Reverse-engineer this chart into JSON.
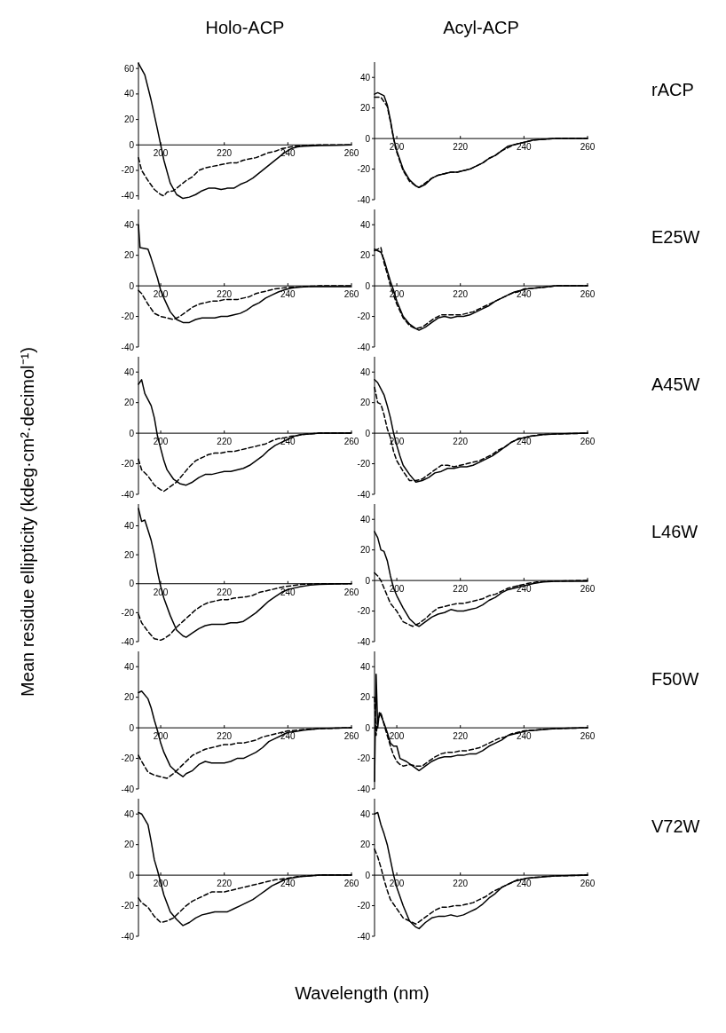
{
  "chart_data": [
    {
      "type": "line",
      "title": "Holo-ACP",
      "xlim": [
        193,
        260
      ],
      "xticks": [
        200,
        220,
        240,
        260
      ],
      "ylim": [
        -43,
        65
      ],
      "yticks": [
        -40,
        -20,
        0,
        20,
        40,
        60
      ],
      "series": [
        {
          "color": "#000000",
          "line_style": "solid",
          "x": [
            193,
            195,
            197,
            199,
            200,
            201,
            203,
            205,
            207,
            209,
            211,
            213,
            215,
            217,
            219,
            221,
            223,
            225,
            227,
            229,
            231,
            233,
            235,
            237,
            239,
            241,
            243,
            245,
            250,
            255,
            260
          ],
          "values": [
            64,
            55,
            35,
            12,
            0,
            -12,
            -30,
            -39,
            -42,
            -41,
            -39,
            -36,
            -34,
            -34,
            -35,
            -34,
            -34,
            -31,
            -29,
            -26,
            -22,
            -18,
            -14,
            -10,
            -6,
            -3,
            -1.5,
            -1,
            -0.5,
            -0.3,
            0
          ]
        },
        {
          "color": "#000000",
          "line_style": "dashed",
          "x": [
            193,
            194,
            196,
            198,
            200,
            201,
            202,
            204,
            206,
            208,
            210,
            212,
            214,
            216,
            218,
            220,
            222,
            224,
            226,
            228,
            230,
            232,
            234,
            236,
            238,
            240,
            242,
            245,
            250,
            260
          ],
          "values": [
            -10,
            -20,
            -28,
            -35,
            -39,
            -40,
            -37,
            -36,
            -32,
            -28,
            -25,
            -20,
            -18,
            -17,
            -16,
            -15,
            -14,
            -14,
            -12,
            -11,
            -10,
            -8,
            -6,
            -5,
            -3,
            -2,
            -1,
            -0.5,
            0,
            0
          ]
        }
      ]
    },
    {
      "type": "line",
      "title": "Acyl-ACP",
      "annotations": [
        "rACP"
      ],
      "xlim": [
        193,
        260
      ],
      "xticks": [
        200,
        220,
        240,
        260
      ],
      "ylim": [
        -40,
        50
      ],
      "yticks": [
        -40,
        -20,
        0,
        20,
        40
      ],
      "series": [
        {
          "color": "#000000",
          "line_style": "solid",
          "x": [
            193,
            194,
            196,
            197,
            198,
            199,
            200,
            202,
            204,
            206,
            207,
            209,
            211,
            213,
            215,
            217,
            219,
            221,
            223,
            225,
            227,
            229,
            231,
            233,
            235,
            237,
            239,
            241,
            243,
            246,
            250,
            260
          ],
          "values": [
            29,
            30,
            28,
            22,
            12,
            0,
            -8,
            -20,
            -27,
            -31,
            -32,
            -30,
            -26,
            -24,
            -23,
            -22,
            -22,
            -21,
            -20,
            -18,
            -16,
            -13,
            -11,
            -8,
            -5,
            -4,
            -3,
            -2,
            -1,
            -0.5,
            0,
            0
          ]
        },
        {
          "color": "#000000",
          "line_style": "dashed",
          "x": [
            193,
            195,
            197,
            198,
            199,
            200,
            202,
            204,
            206,
            207,
            209,
            211,
            213,
            215,
            217,
            219,
            221,
            223,
            225,
            227,
            229,
            231,
            233,
            235,
            237,
            239,
            241,
            243,
            246,
            250,
            260
          ],
          "values": [
            27,
            27,
            21,
            11,
            0,
            -9,
            -21,
            -28,
            -31,
            -32,
            -29,
            -26,
            -24,
            -23,
            -22,
            -22,
            -21,
            -20,
            -18,
            -16,
            -13,
            -11,
            -8,
            -6,
            -4,
            -3,
            -2,
            -1,
            -0.5,
            0,
            0
          ]
        }
      ]
    },
    {
      "type": "line",
      "xlim": [
        193,
        260
      ],
      "xticks": [
        200,
        220,
        240,
        260
      ],
      "ylim": [
        -40,
        50
      ],
      "yticks": [
        -40,
        -20,
        0,
        20,
        40
      ],
      "series": [
        {
          "color": "#000000",
          "line_style": "solid",
          "x": [
            193,
            193.5,
            196,
            197,
            199,
            200,
            201,
            203,
            205,
            207,
            209,
            211,
            213,
            215,
            217,
            219,
            221,
            223,
            225,
            227,
            229,
            231,
            233,
            235,
            237,
            239,
            241,
            243,
            246,
            250,
            260
          ],
          "values": [
            40,
            25,
            24,
            18,
            5,
            -3,
            -8,
            -17,
            -22,
            -24,
            -24,
            -22,
            -21,
            -21,
            -21,
            -20,
            -20,
            -19,
            -18,
            -16,
            -13,
            -11,
            -8,
            -6,
            -4,
            -2.5,
            -1.5,
            -1,
            -0.5,
            -0.3,
            -0.5
          ]
        },
        {
          "color": "#000000",
          "line_style": "dashed",
          "x": [
            193,
            194,
            196,
            198,
            200,
            202,
            204,
            206,
            208,
            210,
            212,
            214,
            216,
            218,
            220,
            222,
            224,
            226,
            228,
            230,
            232,
            234,
            236,
            238,
            240,
            245,
            250,
            260
          ],
          "values": [
            -3,
            -5,
            -12,
            -18,
            -20,
            -21,
            -22,
            -20,
            -17,
            -14,
            -12,
            -11,
            -10,
            -10,
            -9,
            -9,
            -9,
            -8,
            -7,
            -5,
            -4,
            -3,
            -2,
            -1.5,
            -1,
            -0.5,
            0,
            0
          ]
        }
      ]
    },
    {
      "type": "line",
      "annotations": [
        "E25W"
      ],
      "xlim": [
        193,
        260
      ],
      "xticks": [
        200,
        220,
        240,
        260
      ],
      "ylim": [
        -40,
        50
      ],
      "yticks": [
        -40,
        -20,
        0,
        20,
        40
      ],
      "series": [
        {
          "color": "#000000",
          "line_style": "solid",
          "x": [
            193,
            195,
            196,
            197,
            198,
            199,
            200,
            202,
            204,
            206,
            207,
            209,
            211,
            213,
            215,
            217,
            219,
            221,
            223,
            225,
            227,
            229,
            231,
            233,
            235,
            237,
            239,
            241,
            243,
            246,
            250,
            255,
            260
          ],
          "values": [
            24,
            22,
            17,
            10,
            3,
            -3,
            -10,
            -20,
            -25,
            -28,
            -29,
            -27,
            -24,
            -21,
            -20,
            -21,
            -20,
            -20,
            -19,
            -17,
            -15,
            -13,
            -10,
            -8,
            -6,
            -4,
            -3,
            -2,
            -1.5,
            -1,
            0,
            0,
            0
          ]
        },
        {
          "color": "#000000",
          "line_style": "dashed",
          "x": [
            193,
            195,
            196,
            197,
            198,
            199,
            200,
            202,
            204,
            206,
            208,
            210,
            212,
            214,
            216,
            218,
            220,
            222,
            224,
            226,
            228,
            230,
            232,
            234,
            236,
            238,
            240,
            243,
            246,
            250,
            260
          ],
          "values": [
            23,
            25,
            15,
            8,
            0,
            -6,
            -12,
            -21,
            -26,
            -28,
            -27,
            -24,
            -21,
            -19,
            -19,
            -19,
            -19,
            -18,
            -17,
            -15,
            -13,
            -11,
            -9,
            -7,
            -5,
            -4,
            -2,
            -1.5,
            -1,
            0,
            0
          ]
        }
      ]
    },
    {
      "type": "line",
      "xlim": [
        193,
        260
      ],
      "xticks": [
        200,
        220,
        240,
        260
      ],
      "ylim": [
        -40,
        50
      ],
      "yticks": [
        -40,
        -20,
        0,
        20,
        40
      ],
      "series": [
        {
          "color": "#000000",
          "line_style": "solid",
          "x": [
            193,
            194,
            195,
            197,
            198,
            199,
            200,
            201,
            202,
            204,
            206,
            208,
            210,
            212,
            214,
            216,
            218,
            220,
            222,
            224,
            226,
            228,
            230,
            232,
            234,
            236,
            238,
            240,
            242,
            244,
            247,
            250,
            260
          ],
          "values": [
            32,
            35,
            26,
            18,
            10,
            -2,
            -10,
            -18,
            -24,
            -30,
            -33,
            -34,
            -32,
            -29,
            -27,
            -27,
            -26,
            -25,
            -25,
            -24,
            -23,
            -21,
            -18,
            -15,
            -11,
            -8,
            -6,
            -4,
            -2,
            -1,
            -0.5,
            0,
            0
          ]
        },
        {
          "color": "#000000",
          "line_style": "dashed",
          "x": [
            193,
            194,
            196,
            198,
            200,
            201,
            203,
            205,
            207,
            209,
            211,
            213,
            215,
            217,
            219,
            221,
            223,
            225,
            227,
            229,
            231,
            233,
            235,
            237,
            239,
            241,
            243,
            246,
            250,
            260
          ],
          "values": [
            -17,
            -24,
            -28,
            -34,
            -37,
            -38,
            -35,
            -32,
            -27,
            -22,
            -18,
            -16,
            -14,
            -13,
            -13,
            -12,
            -12,
            -11,
            -10,
            -9,
            -8,
            -7,
            -5,
            -3.5,
            -3,
            -2,
            -1.5,
            -0.5,
            0,
            0
          ]
        }
      ]
    },
    {
      "type": "line",
      "annotations": [
        "A45W"
      ],
      "xlim": [
        193,
        260
      ],
      "xticks": [
        200,
        220,
        240,
        260
      ],
      "ylim": [
        -40,
        50
      ],
      "yticks": [
        -40,
        -20,
        0,
        20,
        40
      ],
      "series": [
        {
          "color": "#000000",
          "line_style": "solid",
          "x": [
            193,
            194,
            195,
            196,
            197,
            198,
            199,
            200,
            201,
            202,
            204,
            206,
            208,
            210,
            212,
            214,
            216,
            218,
            220,
            222,
            224,
            226,
            228,
            230,
            232,
            234,
            236,
            238,
            240,
            242,
            244,
            246,
            250,
            260
          ],
          "values": [
            35,
            33,
            29,
            25,
            18,
            10,
            0,
            -8,
            -15,
            -21,
            -27,
            -32,
            -31,
            -29,
            -26,
            -25,
            -23,
            -23,
            -22,
            -22,
            -21,
            -19,
            -17,
            -15,
            -12,
            -9,
            -6,
            -4,
            -3,
            -2,
            -1.5,
            -1,
            -0.5,
            0
          ]
        },
        {
          "color": "#000000",
          "line_style": "dashed",
          "x": [
            193,
            194,
            195,
            196,
            197,
            198,
            199,
            200,
            202,
            204,
            206,
            208,
            210,
            212,
            214,
            216,
            218,
            220,
            222,
            224,
            226,
            228,
            230,
            232,
            234,
            236,
            238,
            240,
            242,
            245,
            250,
            260
          ],
          "values": [
            30,
            20,
            19,
            12,
            3,
            -3,
            -12,
            -18,
            -25,
            -31,
            -31,
            -30,
            -27,
            -24,
            -21,
            -21,
            -22,
            -21,
            -20,
            -19,
            -18,
            -16,
            -14,
            -11,
            -9,
            -6,
            -4,
            -3,
            -2,
            -1,
            -0.5,
            0
          ]
        }
      ]
    },
    {
      "type": "line",
      "ylabel": "Mean residue ellipticity (kdeg·cm²·decimol⁻¹)",
      "xlim": [
        193,
        260
      ],
      "xticks": [
        200,
        220,
        240,
        260
      ],
      "ylim": [
        -40,
        55
      ],
      "yticks": [
        -40,
        -20,
        0,
        20,
        40
      ],
      "series": [
        {
          "color": "#000000",
          "line_style": "solid",
          "x": [
            193,
            194,
            195,
            197,
            198,
            199,
            200,
            201,
            203,
            205,
            207,
            208,
            210,
            212,
            214,
            216,
            218,
            220,
            222,
            224,
            226,
            228,
            230,
            232,
            234,
            236,
            238,
            240,
            242,
            244,
            247,
            250,
            258,
            260
          ],
          "values": [
            52,
            43,
            44,
            30,
            20,
            8,
            -2,
            -10,
            -22,
            -32,
            -36,
            -37,
            -34,
            -31,
            -29,
            -28,
            -28,
            -28,
            -27,
            -27,
            -26,
            -23,
            -20,
            -16,
            -12,
            -9,
            -6,
            -4,
            -3,
            -2,
            -1,
            -0.5,
            0,
            0
          ]
        },
        {
          "color": "#000000",
          "line_style": "dashed",
          "x": [
            193,
            194,
            196,
            198,
            200,
            201,
            203,
            205,
            207,
            209,
            211,
            213,
            215,
            217,
            219,
            221,
            223,
            225,
            227,
            229,
            231,
            233,
            235,
            237,
            239,
            241,
            244,
            250,
            260
          ],
          "values": [
            -21,
            -27,
            -33,
            -38,
            -39,
            -38,
            -35,
            -30,
            -26,
            -22,
            -18,
            -15,
            -13,
            -12,
            -11,
            -11,
            -10,
            -9.5,
            -9,
            -8,
            -6,
            -5,
            -4,
            -3,
            -2,
            -1.5,
            -0.5,
            0,
            0
          ]
        }
      ]
    },
    {
      "type": "line",
      "annotations": [
        "L46W"
      ],
      "xlim": [
        193,
        260
      ],
      "xticks": [
        200,
        220,
        240,
        260
      ],
      "ylim": [
        -40,
        50
      ],
      "yticks": [
        -40,
        -20,
        0,
        20,
        40
      ],
      "series": [
        {
          "color": "#000000",
          "line_style": "solid",
          "x": [
            193,
            194,
            195,
            196,
            197,
            198,
            199,
            200,
            202,
            204,
            206,
            207,
            209,
            211,
            213,
            215,
            217,
            219,
            221,
            223,
            225,
            227,
            229,
            231,
            233,
            235,
            237,
            239,
            241,
            243,
            246,
            250,
            260
          ],
          "values": [
            32,
            28,
            20,
            19,
            13,
            3,
            -5,
            -10,
            -18,
            -25,
            -29,
            -30,
            -27,
            -24,
            -22,
            -21,
            -19,
            -20,
            -20,
            -19,
            -18,
            -16,
            -13,
            -11,
            -8,
            -6,
            -5,
            -4,
            -3,
            -2,
            -1,
            -0.5,
            -0.5
          ]
        },
        {
          "color": "#000000",
          "line_style": "dashed",
          "x": [
            193,
            194,
            195,
            196,
            197,
            198,
            200,
            202,
            204,
            205,
            207,
            209,
            211,
            213,
            215,
            217,
            219,
            221,
            223,
            225,
            227,
            229,
            231,
            233,
            235,
            237,
            239,
            241,
            244,
            248,
            260
          ],
          "values": [
            5,
            3,
            0,
            -5,
            -10,
            -15,
            -20,
            -27,
            -29,
            -30,
            -28,
            -25,
            -21,
            -18,
            -17,
            -16,
            -15,
            -15,
            -14,
            -13,
            -12,
            -10,
            -9,
            -7,
            -5,
            -4,
            -3,
            -2,
            -1,
            -0.5,
            0
          ]
        }
      ]
    },
    {
      "type": "line",
      "xlim": [
        193,
        260
      ],
      "xticks": [
        200,
        220,
        240,
        260
      ],
      "ylim": [
        -40,
        50
      ],
      "yticks": [
        -40,
        -20,
        0,
        20,
        40
      ],
      "series": [
        {
          "color": "#000000",
          "line_style": "solid",
          "x": [
            193,
            194,
            196,
            197,
            198,
            199,
            200,
            201,
            203,
            205,
            207,
            208,
            210,
            212,
            214,
            216,
            218,
            220,
            222,
            224,
            226,
            228,
            230,
            232,
            234,
            236,
            238,
            240,
            242,
            245,
            250,
            260
          ],
          "values": [
            23,
            24,
            19,
            13,
            5,
            -2,
            -10,
            -16,
            -25,
            -29,
            -32,
            -30,
            -28,
            -24,
            -22,
            -23,
            -23,
            -23,
            -22,
            -20,
            -20,
            -18,
            -16,
            -13,
            -9,
            -7,
            -5,
            -3,
            -2.5,
            -1.5,
            -0.5,
            0
          ]
        },
        {
          "color": "#000000",
          "line_style": "dashed",
          "x": [
            193,
            194,
            196,
            198,
            200,
            202,
            204,
            206,
            208,
            210,
            212,
            214,
            216,
            218,
            220,
            222,
            224,
            226,
            228,
            230,
            232,
            234,
            236,
            238,
            240,
            243,
            246,
            250,
            260
          ],
          "values": [
            -18,
            -22,
            -29,
            -31,
            -32,
            -33,
            -30,
            -26,
            -22,
            -18,
            -16,
            -14,
            -13,
            -12,
            -11,
            -11,
            -10,
            -10,
            -9,
            -8,
            -6,
            -5,
            -4,
            -3,
            -2,
            -1.5,
            -1,
            -0.5,
            0
          ]
        }
      ]
    },
    {
      "type": "line",
      "annotations": [
        "F50W"
      ],
      "xlim": [
        193,
        260
      ],
      "xticks": [
        200,
        220,
        240,
        260
      ],
      "ylim": [
        -40,
        50
      ],
      "yticks": [
        -40,
        -20,
        0,
        20,
        40
      ],
      "series": [
        {
          "color": "#000000",
          "line_style": "solid",
          "x": [
            193,
            193.5,
            194,
            194.5,
            195,
            196,
            197,
            198,
            199,
            200,
            201,
            203,
            205,
            207,
            209,
            211,
            213,
            215,
            217,
            219,
            221,
            223,
            225,
            227,
            229,
            231,
            233,
            235,
            237,
            239,
            241,
            244,
            247,
            250,
            260
          ],
          "values": [
            -35,
            35,
            0,
            10,
            8,
            3,
            -3,
            -10,
            -12,
            -12,
            -20,
            -22,
            -25,
            -28,
            -25,
            -22,
            -20,
            -19,
            -19,
            -18,
            -18,
            -17,
            -17,
            -15,
            -12,
            -10,
            -8,
            -5,
            -4,
            -3,
            -2,
            -1.5,
            -1,
            -0.5,
            0
          ]
        },
        {
          "color": "#000000",
          "line_style": "dashed",
          "x": [
            193,
            193.5,
            194,
            195,
            196,
            197,
            198,
            199,
            200,
            201,
            202,
            204,
            206,
            208,
            210,
            212,
            214,
            216,
            218,
            220,
            222,
            224,
            226,
            228,
            230,
            232,
            234,
            236,
            238,
            240,
            243,
            246,
            250,
            260
          ],
          "values": [
            20,
            -5,
            5,
            10,
            2,
            -5,
            -12,
            -18,
            -22,
            -24,
            -25,
            -24,
            -25,
            -25,
            -22,
            -19,
            -17,
            -16,
            -16,
            -15,
            -15,
            -14,
            -13,
            -11,
            -9,
            -7,
            -6,
            -4,
            -3,
            -2,
            -1.5,
            -1,
            -0.5,
            0
          ]
        }
      ]
    },
    {
      "type": "line",
      "xlabel": "Wavelength (nm)",
      "xlim": [
        193,
        260
      ],
      "xticks": [
        200,
        220,
        240,
        260
      ],
      "ylim": [
        -40,
        50
      ],
      "yticks": [
        -40,
        -20,
        0,
        20,
        40
      ],
      "series": [
        {
          "color": "#000000",
          "line_style": "solid",
          "x": [
            193,
            194,
            196,
            197,
            198,
            199,
            200,
            201,
            203,
            205,
            207,
            209,
            211,
            213,
            215,
            217,
            219,
            221,
            223,
            225,
            227,
            229,
            231,
            233,
            235,
            237,
            239,
            241,
            244,
            247,
            250,
            260
          ],
          "values": [
            41,
            40,
            33,
            22,
            10,
            3,
            -5,
            -13,
            -24,
            -29,
            -33,
            -31,
            -28,
            -26,
            -25,
            -24,
            -24,
            -24,
            -22,
            -20,
            -18,
            -16,
            -13,
            -10,
            -7,
            -5,
            -3,
            -2,
            -1,
            -0.5,
            0,
            0
          ]
        },
        {
          "color": "#000000",
          "line_style": "dashed",
          "x": [
            193,
            194,
            196,
            198,
            200,
            202,
            204,
            206,
            208,
            210,
            212,
            214,
            216,
            218,
            220,
            222,
            224,
            226,
            228,
            230,
            232,
            234,
            236,
            238,
            240,
            243,
            246,
            250,
            260
          ],
          "values": [
            -15,
            -18,
            -21,
            -27,
            -31,
            -30,
            -28,
            -24,
            -20,
            -17,
            -15,
            -13,
            -11,
            -11,
            -11,
            -10,
            -9,
            -8,
            -7,
            -6,
            -5,
            -4,
            -3,
            -2.5,
            -2,
            -1,
            -0.5,
            0,
            0
          ]
        }
      ]
    },
    {
      "type": "line",
      "annotations": [
        "V72W"
      ],
      "xlim": [
        193,
        260
      ],
      "xticks": [
        200,
        220,
        240,
        260
      ],
      "ylim": [
        -40,
        50
      ],
      "yticks": [
        -40,
        -20,
        0,
        20,
        40
      ],
      "series": [
        {
          "color": "#000000",
          "line_style": "solid",
          "x": [
            193,
            194,
            195,
            196,
            197,
            198,
            199,
            200,
            202,
            204,
            206,
            207,
            209,
            211,
            213,
            215,
            217,
            219,
            221,
            223,
            225,
            227,
            229,
            231,
            233,
            235,
            237,
            239,
            241,
            244,
            247,
            250,
            260
          ],
          "values": [
            40,
            41,
            33,
            27,
            20,
            10,
            0,
            -8,
            -20,
            -30,
            -34,
            -35,
            -31,
            -28,
            -27,
            -27,
            -26,
            -27,
            -26,
            -24,
            -22,
            -19,
            -15,
            -12,
            -8,
            -6,
            -4,
            -3,
            -2,
            -1.5,
            -1,
            -0.5,
            0
          ]
        },
        {
          "color": "#000000",
          "line_style": "dashed",
          "x": [
            193,
            194,
            195,
            196,
            197,
            198,
            200,
            202,
            204,
            206,
            208,
            210,
            212,
            214,
            216,
            218,
            220,
            222,
            224,
            226,
            228,
            230,
            232,
            234,
            236,
            238,
            240,
            243,
            246,
            250,
            260
          ],
          "values": [
            17,
            12,
            5,
            -3,
            -10,
            -16,
            -22,
            -28,
            -30,
            -32,
            -29,
            -26,
            -23,
            -21,
            -21,
            -20,
            -20,
            -19,
            -18,
            -16,
            -14,
            -11,
            -9,
            -7,
            -5,
            -3,
            -2.5,
            -1.5,
            -1,
            -0.5,
            0
          ]
        }
      ]
    }
  ]
}
